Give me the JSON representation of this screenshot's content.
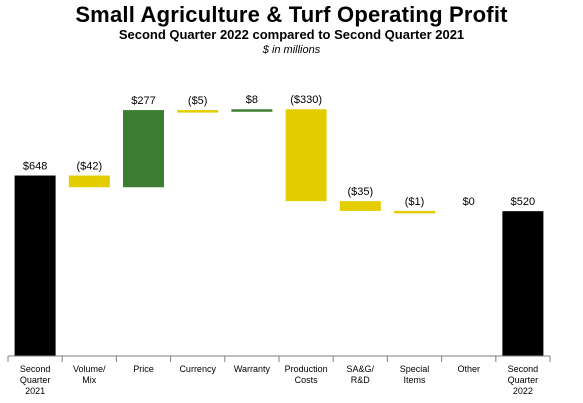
{
  "header": {
    "title": "Small Agriculture & Turf Operating Profit",
    "subtitle": "Second Quarter 2022 compared to Second Quarter 2021",
    "units": "$ in millions"
  },
  "colors": {
    "total": "#000000",
    "increase": "#3d7d33",
    "decrease": "#e3cd00",
    "axis": "#7f7f7f"
  },
  "chart_data": {
    "type": "bar",
    "subtype": "waterfall",
    "title": "Small Agriculture & Turf Operating Profit",
    "subtitle": "Second Quarter 2022 compared to Second Quarter 2021",
    "units": "$ in millions",
    "categories": [
      "Second Quarter 2021",
      "Volume/ Mix",
      "Price",
      "Currency",
      "Warranty",
      "Production Costs",
      "SA&G/ R&D",
      "Special Items",
      "Other",
      "Second Quarter 2022"
    ],
    "tick_lines": [
      [
        "Second",
        "Quarter",
        "2021"
      ],
      [
        "Volume/",
        "Mix"
      ],
      [
        "Price"
      ],
      [
        "Currency"
      ],
      [
        "Warranty"
      ],
      [
        "Production",
        "Costs"
      ],
      [
        "SA&G/",
        "R&D"
      ],
      [
        "Special",
        "Items"
      ],
      [
        "Other"
      ],
      [
        "Second",
        "Quarter",
        "2022"
      ]
    ],
    "values": [
      648,
      -42,
      277,
      -5,
      8,
      -330,
      -35,
      -1,
      0,
      520
    ],
    "kinds": [
      "total",
      "delta",
      "delta",
      "delta",
      "delta",
      "delta",
      "delta",
      "delta",
      "delta",
      "total"
    ],
    "value_labels": [
      "$648",
      "($42)",
      "$277",
      "($5)",
      "$8",
      "($330)",
      "($35)",
      "($1)",
      "$0",
      "$520"
    ],
    "ylim": [
      0,
      900
    ],
    "grid": false,
    "legend": "none"
  }
}
